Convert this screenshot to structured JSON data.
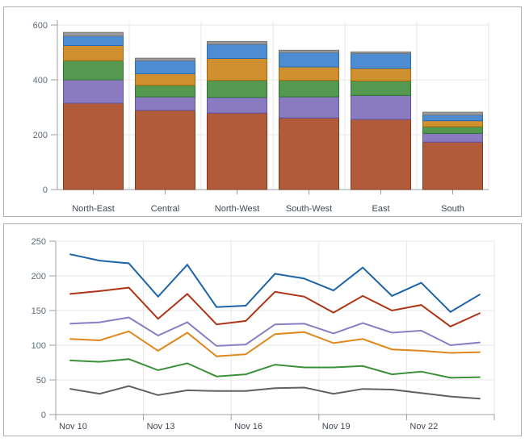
{
  "page": {
    "background": "#ffffff",
    "panel_border_color": "#aeb2b5",
    "axis_line_color": "#9aa0a5",
    "gridline_color": "#e7e7e7",
    "y_label_color": "#5d6b79",
    "x_label_color": "#414855"
  },
  "chart_data": [
    {
      "type": "bar",
      "stacked": true,
      "title": "",
      "legend": "none",
      "grid": true,
      "ylim": [
        0,
        600
      ],
      "yticks": [
        0,
        200,
        400,
        600
      ],
      "categories": [
        "North-East",
        "Central",
        "North-West",
        "South-West",
        "East",
        "South"
      ],
      "series": [
        {
          "name": "segment-rust",
          "color": "#b25b3b",
          "stroke": "#7e3b1e",
          "values": [
            315,
            289,
            279,
            261,
            256,
            173
          ]
        },
        {
          "name": "segment-purple",
          "color": "#8a7bc0",
          "stroke": "#6054a8",
          "values": [
            85,
            49,
            57,
            77,
            87,
            32
          ]
        },
        {
          "name": "segment-green",
          "color": "#55984f",
          "stroke": "#2f7434",
          "values": [
            70,
            42,
            62,
            60,
            53,
            24
          ]
        },
        {
          "name": "segment-orange",
          "color": "#d0902f",
          "stroke": "#a4690d",
          "values": [
            55,
            42,
            80,
            49,
            46,
            22
          ]
        },
        {
          "name": "segment-blue",
          "color": "#4d8cd1",
          "stroke": "#2a6cb0",
          "values": [
            35,
            48,
            52,
            53,
            54,
            21
          ]
        },
        {
          "name": "segment-gray",
          "color": "#9b9b9b",
          "stroke": "#757575",
          "values": [
            13,
            9,
            10,
            8,
            6,
            10
          ]
        }
      ]
    },
    {
      "type": "line",
      "title": "",
      "legend": "none",
      "grid": true,
      "ylim": [
        0,
        250
      ],
      "yticks": [
        0,
        50,
        100,
        150,
        200,
        250
      ],
      "num_points": 15,
      "x_tick_every": 3,
      "x_tick_labels": [
        "Nov 10",
        "Nov 13",
        "Nov 16",
        "Nov 19",
        "Nov 22"
      ],
      "series": [
        {
          "name": "line-blue",
          "color": "#1c63a7",
          "values": [
            231,
            222,
            218,
            170,
            216,
            155,
            157,
            203,
            196,
            179,
            212,
            171,
            190,
            148,
            173
          ]
        },
        {
          "name": "line-red",
          "color": "#ae3416",
          "values": [
            174,
            178,
            183,
            138,
            174,
            130,
            135,
            177,
            170,
            147,
            171,
            150,
            158,
            127,
            146
          ]
        },
        {
          "name": "line-purple",
          "color": "#8c7cc4",
          "values": [
            131,
            133,
            140,
            114,
            133,
            99,
            101,
            130,
            131,
            117,
            132,
            118,
            121,
            100,
            104
          ]
        },
        {
          "name": "line-orange",
          "color": "#e0861c",
          "values": [
            109,
            107,
            120,
            92,
            118,
            84,
            87,
            116,
            119,
            103,
            109,
            94,
            92,
            89,
            90
          ]
        },
        {
          "name": "line-green",
          "color": "#3b9038",
          "values": [
            78,
            76,
            80,
            64,
            74,
            55,
            58,
            72,
            68,
            68,
            70,
            58,
            62,
            53,
            54
          ]
        },
        {
          "name": "line-gray",
          "color": "#606060",
          "values": [
            37,
            30,
            41,
            28,
            35,
            34,
            34,
            38,
            39,
            30,
            37,
            36,
            31,
            26,
            23
          ]
        }
      ]
    }
  ]
}
